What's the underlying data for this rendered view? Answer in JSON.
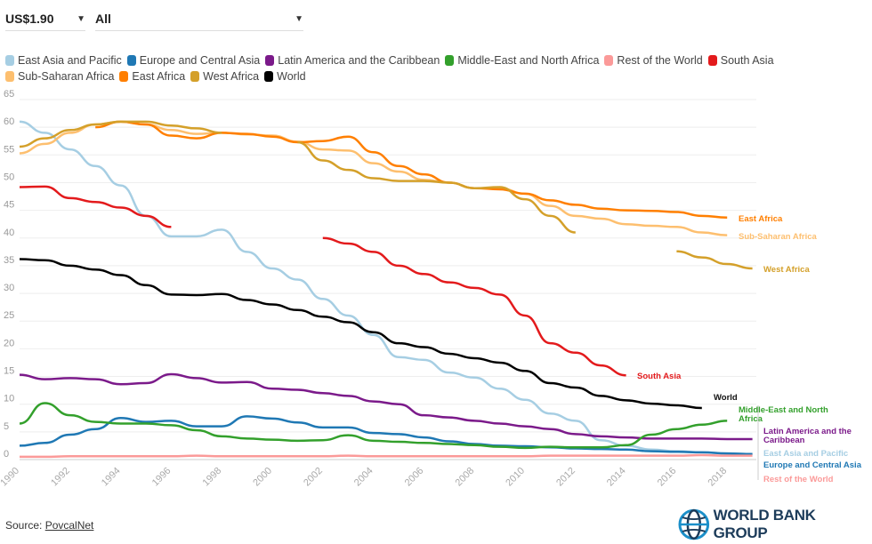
{
  "controls": {
    "poverty_line": "US$1.90",
    "region_filter": "All"
  },
  "source": {
    "label": "Source:",
    "link": "PovcalNet"
  },
  "logo": {
    "text": "WORLD BANK GROUP"
  },
  "chart_data": {
    "type": "line",
    "x": [
      1990,
      1991,
      1992,
      1993,
      1994,
      1995,
      1996,
      1997,
      1998,
      1999,
      2000,
      2001,
      2002,
      2003,
      2004,
      2005,
      2006,
      2007,
      2008,
      2009,
      2010,
      2011,
      2012,
      2013,
      2014,
      2015,
      2016,
      2017,
      2018,
      2019
    ],
    "ylim": [
      0,
      65
    ],
    "yticks": [
      0,
      5,
      10,
      15,
      20,
      25,
      30,
      35,
      40,
      45,
      50,
      55,
      60,
      65
    ],
    "xticks": [
      1990,
      1992,
      1994,
      1996,
      1998,
      2000,
      2002,
      2004,
      2006,
      2008,
      2010,
      2012,
      2014,
      2016,
      2018
    ],
    "grid": "horizontal",
    "legend_position": "top",
    "series": [
      {
        "name": "East Asia and Pacific",
        "color": "#a6cee3",
        "end_label": "East Asia and Pacific",
        "values": [
          61,
          59,
          56,
          53,
          49.5,
          44,
          40.3,
          40.3,
          41.5,
          37.5,
          34.5,
          32.5,
          29,
          26,
          22.5,
          18.5,
          18,
          15.7,
          14.8,
          12.8,
          10.8,
          8.3,
          7,
          3.5,
          2.5,
          1.8,
          1.5,
          1.3,
          1.1,
          1.0
        ]
      },
      {
        "name": "Europe and Central Asia",
        "color": "#1f78b4",
        "end_label": "Europe and Central Asia",
        "values": [
          2.5,
          3,
          4.5,
          5.5,
          7.5,
          6.8,
          7,
          6,
          6,
          7.8,
          7.4,
          6.7,
          5.8,
          5.8,
          4.8,
          4.6,
          4,
          3.3,
          2.8,
          2.5,
          2.4,
          2.2,
          2.0,
          1.9,
          1.8,
          1.5,
          1.4,
          1.3,
          1.1,
          1.0
        ]
      },
      {
        "name": "Latin America and the Caribbean",
        "color": "#7b1a8a",
        "end_label": "Latin America and the Caribbean",
        "values": [
          15.3,
          14.5,
          14.7,
          14.5,
          13.6,
          13.8,
          15.4,
          14.7,
          13.9,
          14,
          12.8,
          12.6,
          12,
          11.5,
          10.5,
          10,
          8,
          7.6,
          7,
          6.5,
          6,
          5.5,
          4.6,
          4.2,
          4,
          3.8,
          3.8,
          3.8,
          3.7,
          3.7
        ]
      },
      {
        "name": "Middle-East and North Africa",
        "color": "#33a02c",
        "end_label": "Middle-East and North Africa",
        "values": [
          6.5,
          10.2,
          8,
          6.8,
          6.5,
          6.5,
          6.2,
          5.3,
          4.2,
          3.8,
          3.6,
          3.4,
          3.5,
          4.4,
          3.4,
          3.2,
          3,
          2.8,
          2.6,
          2.3,
          2.1,
          2.3,
          2.2,
          2.2,
          2.6,
          4.5,
          5.5,
          6.3,
          7,
          null
        ]
      },
      {
        "name": "Rest of the World",
        "color": "#fb9a99",
        "end_label": "Rest of the World",
        "values": [
          0.5,
          0.5,
          0.6,
          0.6,
          0.6,
          0.6,
          0.6,
          0.7,
          0.6,
          0.6,
          0.6,
          0.6,
          0.6,
          0.7,
          0.6,
          0.6,
          0.6,
          0.6,
          0.6,
          0.6,
          0.6,
          0.7,
          0.7,
          0.7,
          0.7,
          0.7,
          0.7,
          0.8,
          0.7,
          0.7
        ]
      },
      {
        "name": "South Asia",
        "color": "#e31a1c",
        "end_label": "South Asia",
        "values": [
          49.2,
          49.3,
          47.2,
          46.5,
          45.5,
          44,
          42,
          null,
          null,
          null,
          null,
          null,
          40,
          39,
          37.5,
          35,
          33.5,
          32,
          31,
          29.8,
          26,
          21,
          19.3,
          17,
          15.2,
          null,
          null,
          null,
          null,
          null
        ]
      },
      {
        "name": "Sub-Saharan Africa",
        "color": "#fdbf6f",
        "end_label": "Sub-Saharan Africa",
        "values": [
          55.3,
          57,
          59,
          60.5,
          61,
          60.5,
          59.5,
          58.8,
          59,
          58.7,
          58.5,
          57.4,
          56,
          55.8,
          53.5,
          52,
          50.5,
          50,
          49,
          49,
          48,
          45.8,
          44,
          43.5,
          42.5,
          42.2,
          42,
          41,
          40.5,
          null
        ]
      },
      {
        "name": "East Africa",
        "color": "#ff7f00",
        "end_label": "East Africa",
        "values": [
          null,
          null,
          null,
          60,
          61,
          60.5,
          58.5,
          58,
          59,
          58.8,
          58.3,
          57.3,
          57.5,
          58.3,
          55.5,
          53,
          51.5,
          50,
          49,
          48.8,
          48,
          46.8,
          46,
          45.3,
          45,
          44.9,
          44.7,
          44,
          43.7,
          null
        ]
      },
      {
        "name": "West Africa",
        "color": "#d4a02a",
        "end_label": "West Africa",
        "values": [
          56.5,
          58,
          59.5,
          60.5,
          61,
          61,
          60.3,
          59.8,
          59,
          null,
          null,
          57.3,
          54,
          52.3,
          50.8,
          50.3,
          50.3,
          50,
          49,
          49.2,
          47,
          44,
          41,
          null,
          null,
          null,
          37.6,
          36.5,
          35.3,
          34.5
        ]
      },
      {
        "name": "World",
        "color": "#000000",
        "end_label": "World",
        "values": [
          36.2,
          36,
          35,
          34.3,
          33.3,
          31.5,
          29.8,
          29.7,
          29.9,
          28.8,
          28,
          27,
          25.8,
          24.8,
          23,
          21,
          20.3,
          19.1,
          18.3,
          17.5,
          16,
          13.8,
          13,
          11.5,
          10.7,
          10.1,
          9.8,
          9.3,
          null,
          null
        ]
      }
    ]
  }
}
